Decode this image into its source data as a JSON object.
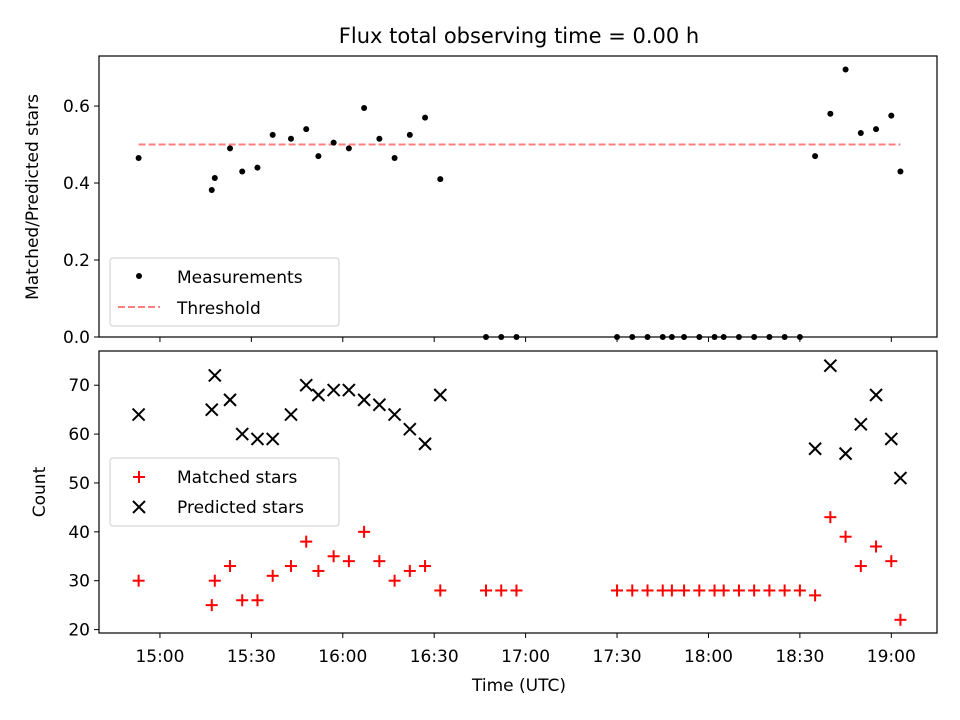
{
  "chart_data": [
    {
      "type": "scatter",
      "title": "Flux total observing time = 0.00 h",
      "ylabel": "Matched/Predicted stars",
      "ylim": [
        0,
        0.73
      ],
      "yticks": [
        0.0,
        0.2,
        0.4,
        0.6
      ],
      "ytick_labels": [
        "0.0",
        "0.2",
        "0.4",
        "0.6"
      ],
      "legend_position": "lower-left",
      "series": [
        {
          "name": "Measurements",
          "marker": "dot",
          "color": "#000000",
          "x": [
            "14:53",
            "15:17",
            "15:18",
            "15:23",
            "15:27",
            "15:32",
            "15:37",
            "15:43",
            "15:48",
            "15:52",
            "15:57",
            "16:02",
            "16:07",
            "16:12",
            "16:17",
            "16:22",
            "16:27",
            "16:32",
            "16:47",
            "16:52",
            "16:57",
            "17:30",
            "17:35",
            "17:40",
            "17:45",
            "17:48",
            "17:52",
            "17:57",
            "18:02",
            "18:05",
            "18:10",
            "18:15",
            "18:20",
            "18:25",
            "18:30",
            "18:35",
            "18:40",
            "18:45",
            "18:50",
            "18:55",
            "19:00",
            "19:03"
          ],
          "y": [
            0.465,
            0.382,
            0.413,
            0.49,
            0.43,
            0.44,
            0.525,
            0.515,
            0.54,
            0.47,
            0.505,
            0.49,
            0.595,
            0.515,
            0.465,
            0.525,
            0.57,
            0.41,
            0,
            0,
            0,
            0,
            0,
            0,
            0,
            0,
            0,
            0,
            0,
            0,
            0,
            0,
            0,
            0,
            0,
            0.47,
            0.58,
            0.695,
            0.53,
            0.54,
            0.575,
            0.43
          ]
        },
        {
          "name": "Threshold",
          "style": "dashed",
          "color": "#ff7f7f",
          "x": [
            "14:53",
            "19:03"
          ],
          "y": [
            0.5,
            0.5
          ]
        }
      ]
    },
    {
      "type": "scatter",
      "xlabel": "Time (UTC)",
      "ylabel": "Count",
      "ylim": [
        19.3,
        77
      ],
      "yticks": [
        20,
        30,
        40,
        50,
        60,
        70
      ],
      "ytick_labels": [
        "20",
        "30",
        "40",
        "50",
        "60",
        "70"
      ],
      "xticks": [
        "15:00",
        "15:30",
        "16:00",
        "16:30",
        "17:00",
        "17:30",
        "18:00",
        "18:30",
        "19:00"
      ],
      "xtick_labels": [
        "15:00",
        "15:30",
        "16:00",
        "16:30",
        "17:00",
        "17:30",
        "18:00",
        "18:30",
        "19:00"
      ],
      "xlim": [
        "14:40",
        "19:15"
      ],
      "legend_position": "center-left",
      "series": [
        {
          "name": "Matched stars",
          "marker": "plus",
          "color": "#ff0000",
          "x": [
            "14:53",
            "15:17",
            "15:18",
            "15:23",
            "15:27",
            "15:32",
            "15:37",
            "15:43",
            "15:48",
            "15:52",
            "15:57",
            "16:02",
            "16:07",
            "16:12",
            "16:17",
            "16:22",
            "16:27",
            "16:32",
            "16:47",
            "16:52",
            "16:57",
            "17:30",
            "17:35",
            "17:40",
            "17:45",
            "17:48",
            "17:52",
            "17:57",
            "18:02",
            "18:05",
            "18:10",
            "18:15",
            "18:20",
            "18:25",
            "18:30",
            "18:35",
            "18:40",
            "18:45",
            "18:50",
            "18:55",
            "19:00",
            "19:03"
          ],
          "y": [
            30,
            25,
            30,
            33,
            26,
            26,
            31,
            33,
            38,
            32,
            35,
            34,
            40,
            34,
            30,
            32,
            33,
            28,
            28,
            28,
            28,
            28,
            28,
            28,
            28,
            28,
            28,
            28,
            28,
            28,
            28,
            28,
            28,
            28,
            28,
            27,
            43,
            39,
            33,
            37,
            34,
            22
          ]
        },
        {
          "name": "Predicted stars",
          "marker": "x",
          "color": "#000000",
          "x": [
            "14:53",
            "15:17",
            "15:18",
            "15:23",
            "15:27",
            "15:32",
            "15:37",
            "15:43",
            "15:48",
            "15:52",
            "15:57",
            "16:02",
            "16:07",
            "16:12",
            "16:17",
            "16:22",
            "16:27",
            "16:32",
            "18:35",
            "18:40",
            "18:45",
            "18:50",
            "18:55",
            "19:00",
            "19:03"
          ],
          "y": [
            64,
            65,
            72,
            67,
            60,
            59,
            59,
            64,
            70,
            68,
            69,
            69,
            67,
            66,
            64,
            61,
            58,
            68,
            57,
            74,
            56,
            62,
            68,
            59,
            51
          ]
        }
      ]
    }
  ]
}
